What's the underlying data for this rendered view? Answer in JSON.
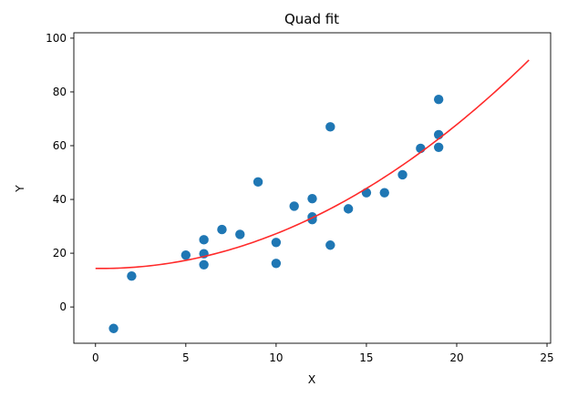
{
  "chart_data": {
    "type": "scatter",
    "title": "Quad fit",
    "xlabel": "X",
    "ylabel": "Y",
    "xlim": [
      -1.2,
      25.2
    ],
    "ylim": [
      -13.5,
      102
    ],
    "xticks": [
      0,
      5,
      10,
      15,
      20,
      25
    ],
    "yticks": [
      0,
      20,
      40,
      60,
      80,
      100
    ],
    "xtick_labels": [
      "0",
      "5",
      "10",
      "15",
      "20",
      "25"
    ],
    "ytick_labels": [
      "0",
      "20",
      "40",
      "60",
      "80",
      "100"
    ],
    "grid": false,
    "series": [
      {
        "kind": "scatter",
        "color": "#1f77b4",
        "points": [
          {
            "x": 1,
            "y": -8
          },
          {
            "x": 2,
            "y": 11.5
          },
          {
            "x": 5,
            "y": 19.3
          },
          {
            "x": 6,
            "y": 25
          },
          {
            "x": 6,
            "y": 19.8
          },
          {
            "x": 6,
            "y": 15.7
          },
          {
            "x": 7,
            "y": 28.8
          },
          {
            "x": 8,
            "y": 27
          },
          {
            "x": 9,
            "y": 46.5
          },
          {
            "x": 10,
            "y": 24
          },
          {
            "x": 10,
            "y": 16.2
          },
          {
            "x": 11,
            "y": 37.5
          },
          {
            "x": 12,
            "y": 40.3
          },
          {
            "x": 12,
            "y": 33.5
          },
          {
            "x": 12,
            "y": 32.5
          },
          {
            "x": 13,
            "y": 67
          },
          {
            "x": 13,
            "y": 23
          },
          {
            "x": 14,
            "y": 36.5
          },
          {
            "x": 15,
            "y": 42.5
          },
          {
            "x": 16,
            "y": 42.5
          },
          {
            "x": 17,
            "y": 49.2
          },
          {
            "x": 18,
            "y": 59
          },
          {
            "x": 19,
            "y": 77.2
          },
          {
            "x": 19,
            "y": 64.1
          },
          {
            "x": 19,
            "y": 59.4
          }
        ]
      },
      {
        "kind": "line",
        "color": "#ff2a2a",
        "coefficients": {
          "a": 0.1385,
          "b": -0.095,
          "c": 14.35
        },
        "x_range": [
          0,
          24
        ]
      }
    ]
  }
}
